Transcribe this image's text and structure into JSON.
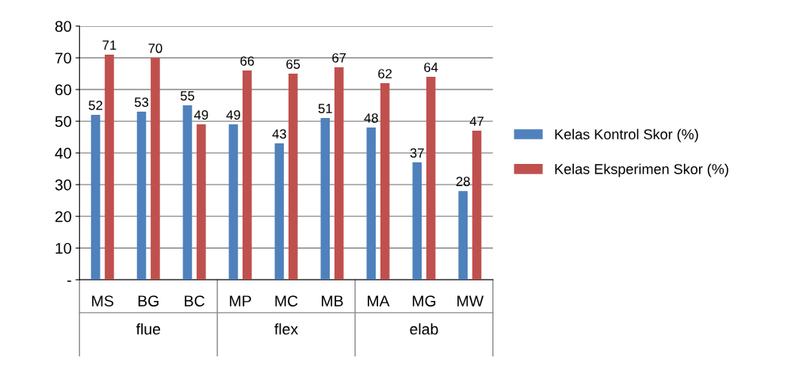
{
  "chart_data": {
    "type": "bar",
    "categories": [
      "MS",
      "BG",
      "BC",
      "MP",
      "MC",
      "MB",
      "MA",
      "MG",
      "MW"
    ],
    "series": [
      {
        "name": "Kelas Kontrol Skor (%)",
        "color": "#4f81bd",
        "values": [
          52,
          53,
          55,
          49,
          43,
          51,
          48,
          37,
          28
        ]
      },
      {
        "name": "Kelas Eksperimen Skor (%)",
        "color": "#c0504d",
        "values": [
          71,
          70,
          49,
          66,
          65,
          67,
          62,
          64,
          47
        ]
      }
    ],
    "annotations": [
      "flue",
      "flex",
      "elab"
    ],
    "ylim": [
      0,
      80
    ],
    "yticks": [
      {
        "value": 0,
        "label": "-"
      },
      10,
      20,
      30,
      40,
      50,
      60,
      70,
      80
    ],
    "grid": "y",
    "legend": "right",
    "data_labels": true
  }
}
